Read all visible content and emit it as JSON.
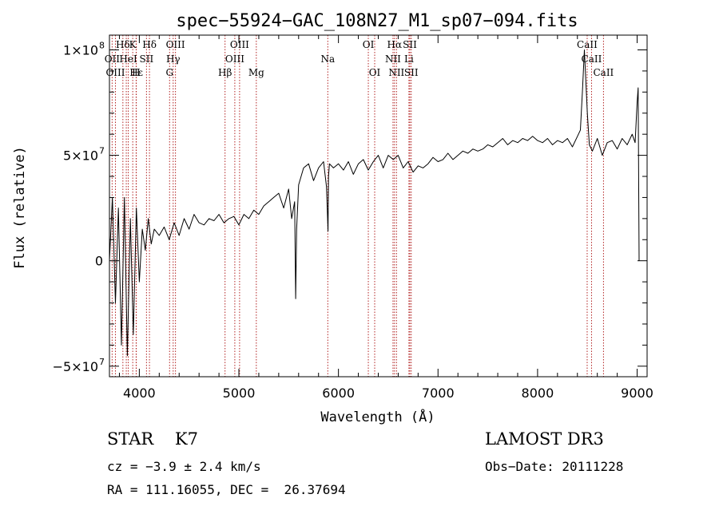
{
  "chart_data": {
    "type": "line",
    "title": "spec−55924−GAC_108N27_M1_sp07−094.fits",
    "xlabel": "Wavelength (Å)",
    "ylabel": "Flux (relative)",
    "xlim": [
      3700,
      9100
    ],
    "ylim": [
      -55000000,
      107000000
    ],
    "x_ticks": [
      {
        "value": 4000,
        "label": "4000"
      },
      {
        "value": 5000,
        "label": "5000"
      },
      {
        "value": 6000,
        "label": "6000"
      },
      {
        "value": 7000,
        "label": "7000"
      },
      {
        "value": 8000,
        "label": "8000"
      },
      {
        "value": 9000,
        "label": "9000"
      }
    ],
    "y_ticks": [
      {
        "value": -50000000,
        "label": "−5×10",
        "exp": "7"
      },
      {
        "value": 0,
        "label": "0",
        "exp": ""
      },
      {
        "value": 50000000,
        "label": "5×10",
        "exp": "7"
      },
      {
        "value": 100000000,
        "label": "1×10",
        "exp": "8"
      }
    ],
    "series": [
      {
        "name": "flux",
        "x": [
          3700,
          3730,
          3760,
          3790,
          3820,
          3850,
          3880,
          3910,
          3940,
          3970,
          4000,
          4030,
          4060,
          4090,
          4120,
          4150,
          4200,
          4250,
          4300,
          4350,
          4400,
          4450,
          4500,
          4550,
          4600,
          4650,
          4700,
          4750,
          4800,
          4850,
          4900,
          4950,
          5000,
          5050,
          5100,
          5150,
          5200,
          5250,
          5300,
          5350,
          5400,
          5450,
          5500,
          5530,
          5560,
          5570,
          5580,
          5600,
          5650,
          5700,
          5750,
          5800,
          5850,
          5880,
          5895,
          5900,
          5910,
          5950,
          6000,
          6050,
          6100,
          6150,
          6200,
          6250,
          6300,
          6350,
          6400,
          6450,
          6500,
          6550,
          6600,
          6650,
          6700,
          6750,
          6800,
          6850,
          6900,
          6950,
          7000,
          7050,
          7100,
          7150,
          7200,
          7250,
          7300,
          7350,
          7400,
          7450,
          7500,
          7550,
          7600,
          7650,
          7700,
          7750,
          7800,
          7850,
          7900,
          7950,
          8000,
          8050,
          8100,
          8150,
          8200,
          8250,
          8300,
          8350,
          8400,
          8430,
          8450,
          8470,
          8500,
          8520,
          8550,
          8600,
          8650,
          8700,
          8750,
          8800,
          8850,
          8900,
          8950,
          8980,
          9000,
          9010,
          9020
        ],
        "values": [
          0,
          30000000,
          -20000000,
          25000000,
          -40000000,
          30000000,
          -45000000,
          20000000,
          -35000000,
          25000000,
          -10000000,
          15000000,
          5000000,
          20000000,
          8000000,
          15000000,
          12000000,
          16000000,
          10000000,
          18000000,
          12000000,
          20000000,
          15000000,
          22000000,
          18000000,
          17000000,
          20000000,
          19000000,
          22000000,
          18000000,
          20000000,
          21000000,
          17000000,
          22000000,
          20000000,
          24000000,
          22000000,
          26000000,
          28000000,
          30000000,
          32000000,
          25000000,
          34000000,
          20000000,
          28000000,
          -18000000,
          15000000,
          36000000,
          44000000,
          46000000,
          38000000,
          44000000,
          47000000,
          35000000,
          14000000,
          40000000,
          46000000,
          44000000,
          46000000,
          43000000,
          47000000,
          41000000,
          46000000,
          48000000,
          43000000,
          47000000,
          50000000,
          44000000,
          50000000,
          48000000,
          50000000,
          44000000,
          47000000,
          42000000,
          45000000,
          44000000,
          46000000,
          49000000,
          47000000,
          48000000,
          51000000,
          48000000,
          50000000,
          52000000,
          51000000,
          53000000,
          52000000,
          53000000,
          55000000,
          54000000,
          56000000,
          58000000,
          55000000,
          57000000,
          56000000,
          58000000,
          57000000,
          59000000,
          57000000,
          56000000,
          58000000,
          55000000,
          57000000,
          56000000,
          58000000,
          54000000,
          59000000,
          62000000,
          80000000,
          100000000,
          70000000,
          55000000,
          52000000,
          58000000,
          50000000,
          56000000,
          57000000,
          53000000,
          58000000,
          55000000,
          60000000,
          56000000,
          75000000,
          82000000,
          0
        ]
      }
    ],
    "line_labels": [
      {
        "name": "Hδ",
        "row": 0,
        "wl": 3835
      },
      {
        "name": "K",
        "row": 0,
        "wl": 3934
      },
      {
        "name": "Hδ",
        "row": 0,
        "wl": 4102
      },
      {
        "name": "OIII",
        "row": 0,
        "wl": 4363
      },
      {
        "name": "OIII",
        "row": 0,
        "wl": 5007
      },
      {
        "name": "OI",
        "row": 0,
        "wl": 6300
      },
      {
        "name": "Hα",
        "row": 0,
        "wl": 6563
      },
      {
        "name": "SII",
        "row": 0,
        "wl": 6717
      },
      {
        "name": "CaII",
        "row": 0,
        "wl": 8498
      },
      {
        "name": "OII",
        "row": 1,
        "wl": 3727
      },
      {
        "name": "HeI",
        "row": 1,
        "wl": 3889
      },
      {
        "name": "SII",
        "row": 1,
        "wl": 4072
      },
      {
        "name": "Hγ",
        "row": 1,
        "wl": 4340
      },
      {
        "name": "OIII",
        "row": 1,
        "wl": 4959
      },
      {
        "name": "Na",
        "row": 1,
        "wl": 5893
      },
      {
        "name": "NII",
        "row": 1,
        "wl": 6548
      },
      {
        "name": "Li",
        "row": 1,
        "wl": 6708
      },
      {
        "name": "CaII",
        "row": 1,
        "wl": 8542
      },
      {
        "name": "OIII",
        "row": 2,
        "wl": 3760
      },
      {
        "name": "Hε",
        "row": 2,
        "wl": 3970
      },
      {
        "name": "H",
        "row": 2,
        "wl": 3968
      },
      {
        "name": "G",
        "row": 2,
        "wl": 4304
      },
      {
        "name": "Hβ",
        "row": 2,
        "wl": 4861
      },
      {
        "name": "Mg",
        "row": 2,
        "wl": 5175
      },
      {
        "name": "OI",
        "row": 2,
        "wl": 6364
      },
      {
        "name": "NII",
        "row": 2,
        "wl": 6583
      },
      {
        "name": "SII",
        "row": 2,
        "wl": 6731
      },
      {
        "name": "CaII",
        "row": 2,
        "wl": 8662
      }
    ],
    "line_wavelengths": [
      3727,
      3760,
      3835,
      3869,
      3889,
      3934,
      3968,
      3970,
      4072,
      4102,
      4304,
      4340,
      4363,
      4861,
      4959,
      5007,
      5175,
      5893,
      6300,
      6364,
      6548,
      6563,
      6583,
      6708,
      6717,
      6731,
      8498,
      8542,
      8662
    ]
  },
  "info": {
    "class_text": "STAR    K7",
    "cz_text": "cz = −3.9 ± 2.4 km/s",
    "radec_text": "RA = 111.16055, DEC =  26.37694",
    "survey_text": "LAMOST DR3",
    "obsdate_text": "Obs−Date: 20111228"
  },
  "colors": {
    "line_marker": "#b22222",
    "spectrum": "#000000",
    "axes": "#000000"
  }
}
